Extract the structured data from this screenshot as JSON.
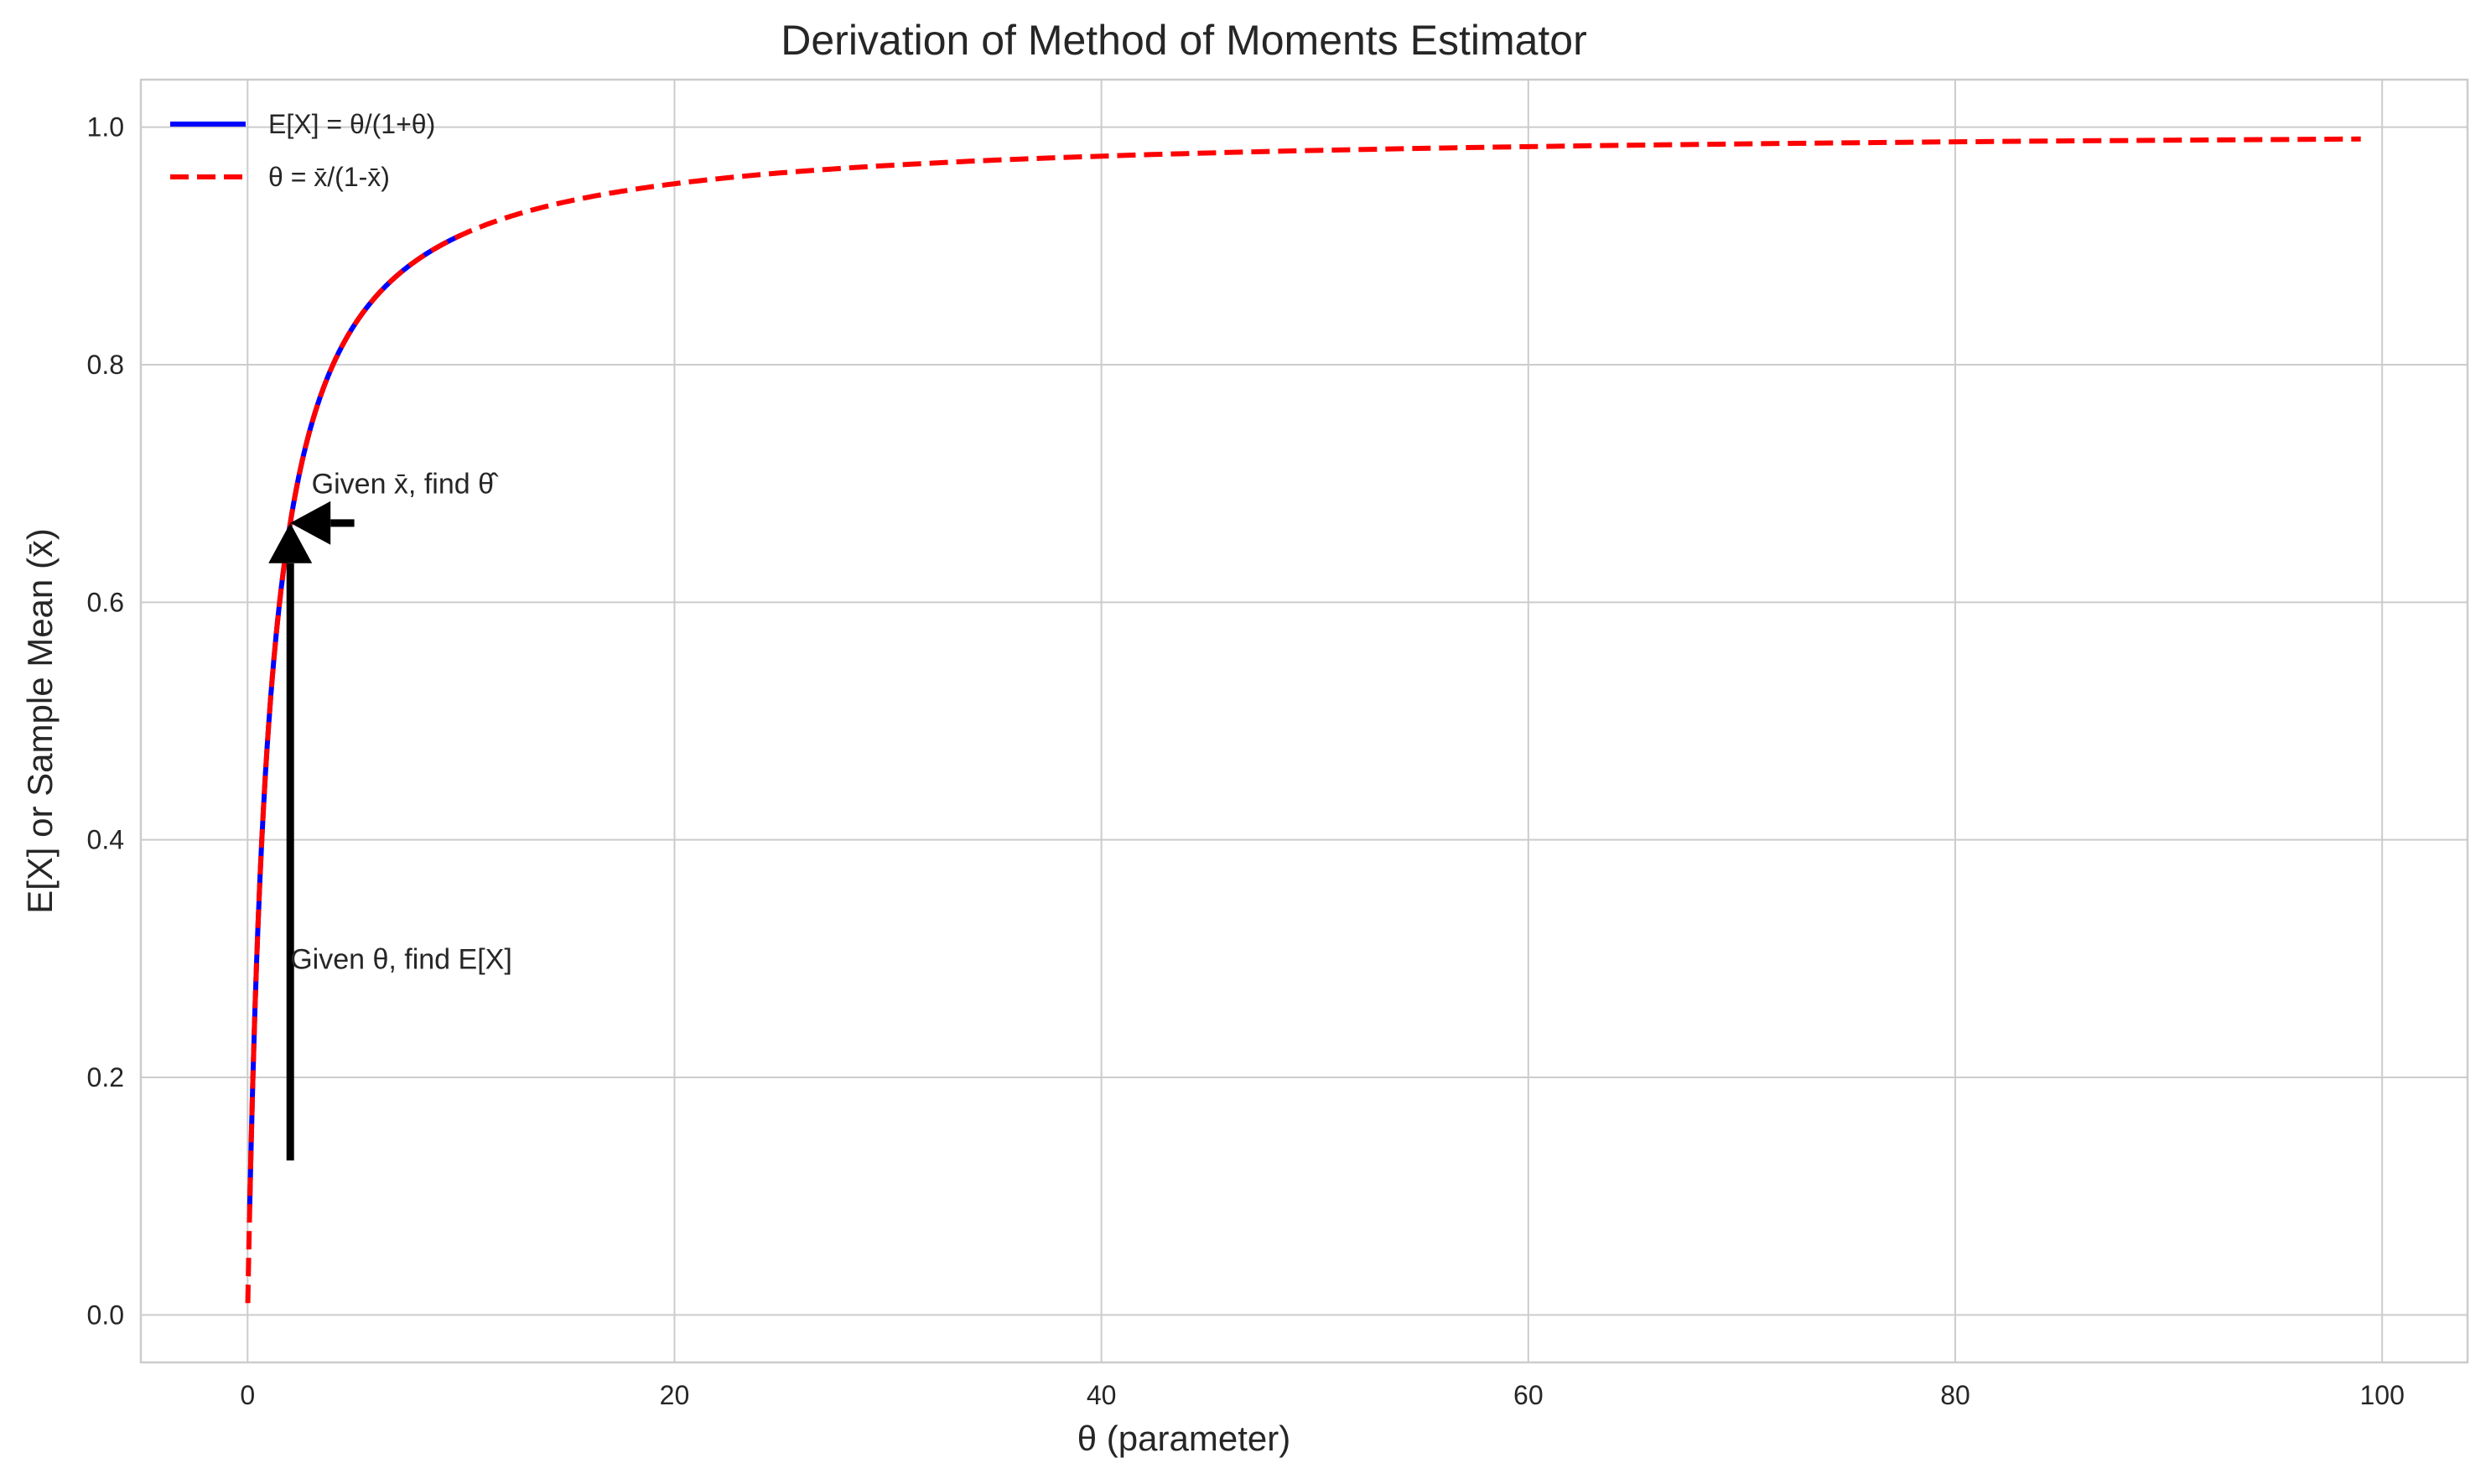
{
  "chart_data": {
    "type": "line",
    "title": "Derivation of Method of Moments Estimator",
    "xlabel": "θ (parameter)",
    "ylabel": "E[X] or Sample Mean (x̄)",
    "xlim": [
      -5,
      104
    ],
    "ylim": [
      -0.04,
      1.04
    ],
    "x_ticks": [
      0,
      20,
      40,
      60,
      80,
      100
    ],
    "x_tick_labels": [
      "0",
      "20",
      "40",
      "60",
      "80",
      "100"
    ],
    "y_ticks": [
      0.0,
      0.2,
      0.4,
      0.6,
      0.8,
      1.0
    ],
    "y_tick_labels": [
      "0.0",
      "0.2",
      "0.4",
      "0.6",
      "0.8",
      "1.0"
    ],
    "grid": true,
    "legend_position": "top-left",
    "series": [
      {
        "name": "E[X] = θ/(1+θ)",
        "color": "#0000ff",
        "style": "solid",
        "function": "theta/(1+theta)",
        "x_range": [
          0.1,
          10
        ],
        "x": [
          0.1,
          0.2,
          0.3,
          0.5,
          0.75,
          1,
          1.5,
          2,
          2.5,
          3,
          4,
          5,
          6,
          7,
          8,
          9,
          10
        ],
        "y": [
          0.091,
          0.167,
          0.231,
          0.333,
          0.429,
          0.5,
          0.6,
          0.667,
          0.714,
          0.75,
          0.8,
          0.833,
          0.857,
          0.875,
          0.889,
          0.9,
          0.909
        ]
      },
      {
        "name": "θ = x̄/(1-x̄)",
        "color": "#ff0000",
        "style": "dashed",
        "function": "theta/(1+theta) evaluated at theta = xbar/(1-xbar)",
        "xbar_range": [
          0.01,
          0.99
        ],
        "x": [
          0.0101,
          0.111,
          0.25,
          0.429,
          0.667,
          1,
          1.5,
          2.33,
          4,
          9,
          19,
          49,
          99
        ],
        "y": [
          0.01,
          0.1,
          0.2,
          0.3,
          0.4,
          0.5,
          0.6,
          0.7,
          0.8,
          0.9,
          0.95,
          0.98,
          0.99
        ]
      }
    ],
    "annotations": [
      {
        "text": "Given θ, find E[X]",
        "arrow_from": [
          2,
          0.13
        ],
        "arrow_to": [
          2,
          0.6667
        ],
        "text_pos": [
          2,
          0.3
        ]
      },
      {
        "text": "Given x̄, find θ̂",
        "arrow_from": [
          5,
          0.6667
        ],
        "arrow_to": [
          2,
          0.6667
        ],
        "text_pos": [
          3,
          0.7
        ]
      }
    ]
  }
}
